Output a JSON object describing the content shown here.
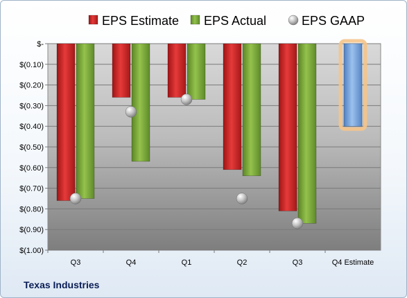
{
  "company_label": "Texas Industries",
  "chart_data": {
    "type": "bar",
    "categories": [
      "Q3",
      "Q4",
      "Q1",
      "Q2",
      "Q3",
      "Q4 Estimate"
    ],
    "series": [
      {
        "name": "EPS Estimate",
        "color": "#d42a2a",
        "values": [
          -0.76,
          -0.26,
          -0.26,
          -0.61,
          -0.81,
          -0.4
        ]
      },
      {
        "name": "EPS Actual",
        "color": "#7fab3c",
        "values": [
          -0.75,
          -0.57,
          -0.27,
          -0.64,
          -0.87,
          null
        ]
      },
      {
        "name": "EPS GAAP",
        "color": "#b0b0b0",
        "values": [
          -0.75,
          -0.33,
          -0.27,
          -0.75,
          -0.87,
          null
        ]
      }
    ],
    "estimate_color": "#6f9fd8",
    "highlight_color": "#f5c48a",
    "ylim": [
      -1.0,
      0
    ],
    "yticks": [
      {
        "value": 0,
        "label": "$-"
      },
      {
        "value": -0.1,
        "label": "$(0.10)"
      },
      {
        "value": -0.2,
        "label": "$(0.20)"
      },
      {
        "value": -0.3,
        "label": "$(0.30)"
      },
      {
        "value": -0.4,
        "label": "$(0.40)"
      },
      {
        "value": -0.5,
        "label": "$(0.50)"
      },
      {
        "value": -0.6,
        "label": "$(0.60)"
      },
      {
        "value": -0.7,
        "label": "$(0.70)"
      },
      {
        "value": -0.8,
        "label": "$(0.80)"
      },
      {
        "value": -0.9,
        "label": "$(0.90)"
      },
      {
        "value": -1.0,
        "label": "$(1.00)"
      }
    ],
    "grid": true,
    "legend_position": "top"
  }
}
